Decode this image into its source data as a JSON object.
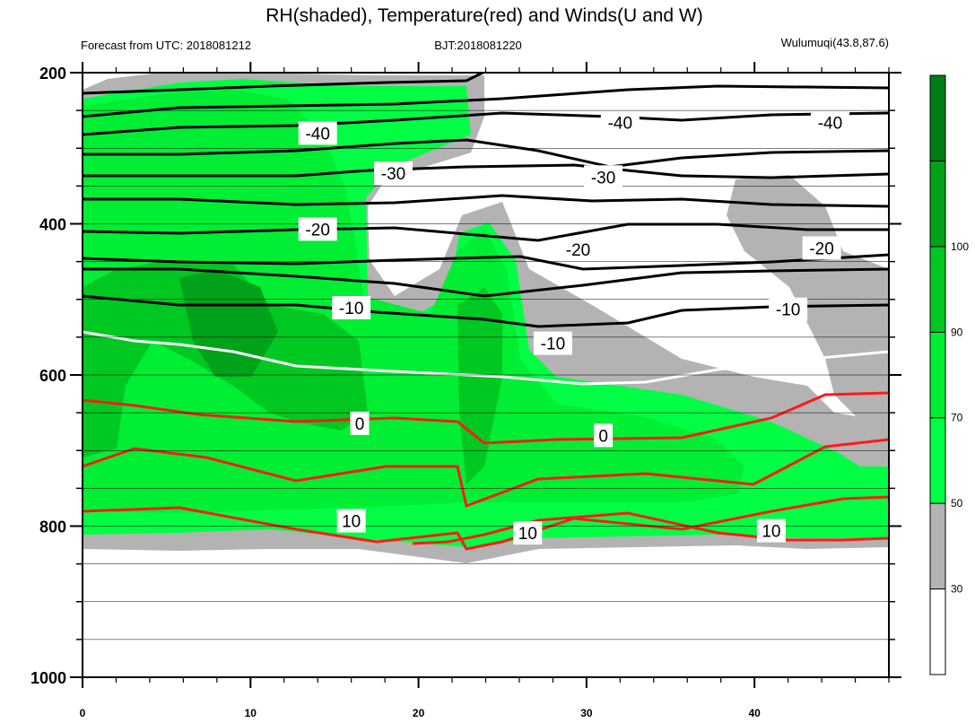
{
  "chart_data": {
    "type": "contour",
    "title": "RH(shaded), Temperature(red) and Winds(U and W)",
    "forecast": "Forecast from UTC: 2018081212",
    "bjt": "BJT:2018081220",
    "station": "Wulumuqi(43.8,87.6)",
    "x_ticks": [
      0,
      10,
      20,
      30,
      40
    ],
    "xlim": [
      0,
      48
    ],
    "y_ticks": [
      200,
      400,
      600,
      800,
      1000
    ],
    "ylim": [
      1000,
      200
    ],
    "y_minor": [
      250,
      300,
      350,
      450,
      500,
      550,
      650,
      700,
      750,
      850,
      900,
      950
    ],
    "colorbar": {
      "levels": [
        30,
        50,
        70,
        90,
        100
      ],
      "colors": [
        "#ffffff",
        "#b3b3b3",
        "#00ff44",
        "#00ee33",
        "#00c822",
        "#00a21a",
        "#007d14"
      ]
    },
    "contour_labels": [
      {
        "text": "-40",
        "x": 14,
        "y": 280
      },
      {
        "text": "-40",
        "x": 32,
        "y": 266
      },
      {
        "text": "-40",
        "x": 44.5,
        "y": 266
      },
      {
        "text": "-30",
        "x": 18.5,
        "y": 333
      },
      {
        "text": "-30",
        "x": 31,
        "y": 338
      },
      {
        "text": "-20",
        "x": 14,
        "y": 407
      },
      {
        "text": "-20",
        "x": 29.5,
        "y": 434
      },
      {
        "text": "-20",
        "x": 44,
        "y": 432
      },
      {
        "text": "-10",
        "x": 16,
        "y": 511
      },
      {
        "text": "-10",
        "x": 28,
        "y": 558
      },
      {
        "text": "-10",
        "x": 42,
        "y": 513
      },
      {
        "text": "0",
        "x": 16.5,
        "y": 664
      },
      {
        "text": "0",
        "x": 31,
        "y": 680
      },
      {
        "text": "10",
        "x": 16,
        "y": 793
      },
      {
        "text": "10",
        "x": 26.5,
        "y": 809
      },
      {
        "text": "10",
        "x": 41,
        "y": 806
      }
    ]
  }
}
